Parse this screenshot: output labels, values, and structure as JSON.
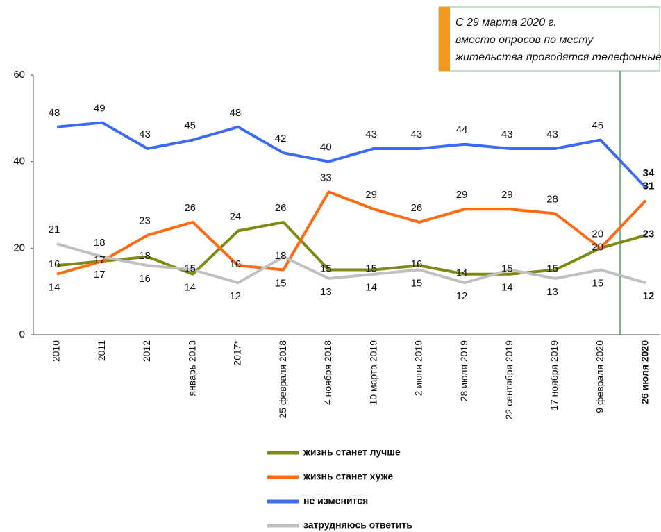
{
  "chart_data": {
    "type": "line",
    "annotation": "С 29 марта 2020 г. вместо опросов по месту жительства проводятся телефонные опросы",
    "categories": [
      "2010",
      "2011",
      "2012",
      "январь 2013",
      "2017*",
      "25 февраля 2018",
      "4 ноября 2018",
      "10 марта 2019",
      "2 июня 2019",
      "28 июля 2019",
      "22 сентября 2019",
      "17 ноября 2019",
      "9 февраля 2020",
      "26 июля 2020"
    ],
    "series": [
      {
        "name": "жизнь станет лучше",
        "color": "#7f8a12",
        "values": [
          16,
          17,
          18,
          14,
          24,
          26,
          15,
          15,
          16,
          14,
          14,
          15,
          20,
          23
        ]
      },
      {
        "name": "жизнь станет хуже",
        "color": "#ff6a13",
        "values": [
          14,
          17,
          23,
          26,
          16,
          15,
          33,
          29,
          26,
          29,
          29,
          28,
          20,
          31
        ]
      },
      {
        "name": "не изменится",
        "color": "#3d6bf0",
        "values": [
          48,
          49,
          43,
          45,
          48,
          42,
          40,
          43,
          43,
          44,
          43,
          43,
          45,
          34
        ]
      },
      {
        "name": "затрудняюсь ответить",
        "color": "#c0c0c0",
        "values": [
          21,
          18,
          16,
          15,
          12,
          18,
          13,
          14,
          15,
          12,
          15,
          13,
          15,
          12
        ]
      }
    ],
    "ylim": [
      0,
      60
    ],
    "yticks": [
      0,
      20,
      40,
      60
    ],
    "grid": false
  }
}
